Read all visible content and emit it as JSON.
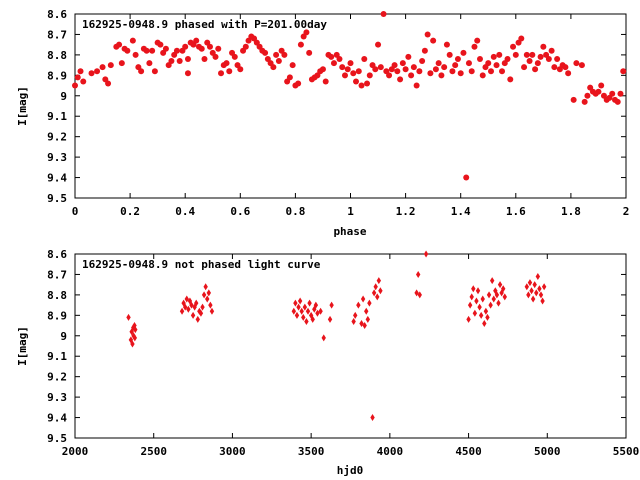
{
  "colors": {
    "points": "#e8141c",
    "axes": "#000000",
    "background": "#ffffff"
  },
  "chart_data": [
    {
      "type": "scatter",
      "title": "162925-0948.9 phased with P=201.00day",
      "xlabel": "phase",
      "ylabel": "I[mag]",
      "xlim": [
        0,
        2
      ],
      "ylim": [
        8.6,
        9.5
      ],
      "y_inverted": true,
      "x_ticks": [
        "0",
        "0.2",
        "0.4",
        "0.6",
        "0.8",
        "1",
        "1.2",
        "1.4",
        "1.6",
        "1.8",
        "2"
      ],
      "y_ticks": [
        "8.6",
        "8.7",
        "8.8",
        "8.9",
        "9",
        "9.1",
        "9.2",
        "9.3",
        "9.4",
        "9.5"
      ],
      "grid": false,
      "legend": "none",
      "marker": "filled-circle",
      "points": [
        [
          0.0,
          8.95
        ],
        [
          0.01,
          8.91
        ],
        [
          0.02,
          8.88
        ],
        [
          0.03,
          8.93
        ],
        [
          0.06,
          8.89
        ],
        [
          0.08,
          8.88
        ],
        [
          0.1,
          8.86
        ],
        [
          0.11,
          8.92
        ],
        [
          0.12,
          8.94
        ],
        [
          0.13,
          8.85
        ],
        [
          0.15,
          8.76
        ],
        [
          0.16,
          8.75
        ],
        [
          0.17,
          8.84
        ],
        [
          0.18,
          8.77
        ],
        [
          0.19,
          8.78
        ],
        [
          0.21,
          8.73
        ],
        [
          0.22,
          8.8
        ],
        [
          0.23,
          8.86
        ],
        [
          0.24,
          8.88
        ],
        [
          0.25,
          8.77
        ],
        [
          0.26,
          8.78
        ],
        [
          0.27,
          8.84
        ],
        [
          0.28,
          8.78
        ],
        [
          0.29,
          8.88
        ],
        [
          0.3,
          8.74
        ],
        [
          0.31,
          8.75
        ],
        [
          0.32,
          8.79
        ],
        [
          0.33,
          8.77
        ],
        [
          0.34,
          8.85
        ],
        [
          0.35,
          8.83
        ],
        [
          0.36,
          8.8
        ],
        [
          0.37,
          8.78
        ],
        [
          0.38,
          8.83
        ],
        [
          0.39,
          8.78
        ],
        [
          0.4,
          8.76
        ],
        [
          0.41,
          8.89
        ],
        [
          0.41,
          8.82
        ],
        [
          0.42,
          8.74
        ],
        [
          0.43,
          8.75
        ],
        [
          0.44,
          8.73
        ],
        [
          0.45,
          8.76
        ],
        [
          0.46,
          8.77
        ],
        [
          0.47,
          8.82
        ],
        [
          0.48,
          8.74
        ],
        [
          0.49,
          8.76
        ],
        [
          0.5,
          8.79
        ],
        [
          0.51,
          8.81
        ],
        [
          0.52,
          8.77
        ],
        [
          0.53,
          8.89
        ],
        [
          0.54,
          8.85
        ],
        [
          0.55,
          8.84
        ],
        [
          0.56,
          8.88
        ],
        [
          0.57,
          8.79
        ],
        [
          0.58,
          8.81
        ],
        [
          0.59,
          8.85
        ],
        [
          0.6,
          8.87
        ],
        [
          0.61,
          8.78
        ],
        [
          0.62,
          8.76
        ],
        [
          0.63,
          8.73
        ],
        [
          0.64,
          8.71
        ],
        [
          0.65,
          8.72
        ],
        [
          0.66,
          8.74
        ],
        [
          0.67,
          8.76
        ],
        [
          0.68,
          8.78
        ],
        [
          0.69,
          8.79
        ],
        [
          0.7,
          8.82
        ],
        [
          0.71,
          8.84
        ],
        [
          0.72,
          8.86
        ],
        [
          0.73,
          8.8
        ],
        [
          0.74,
          8.83
        ],
        [
          0.75,
          8.78
        ],
        [
          0.76,
          8.8
        ],
        [
          0.77,
          8.93
        ],
        [
          0.78,
          8.91
        ],
        [
          0.79,
          8.85
        ],
        [
          0.8,
          8.95
        ],
        [
          0.81,
          8.94
        ],
        [
          0.82,
          8.75
        ],
        [
          0.83,
          8.71
        ],
        [
          0.84,
          8.69
        ],
        [
          0.85,
          8.79
        ],
        [
          0.86,
          8.92
        ],
        [
          0.87,
          8.91
        ],
        [
          0.88,
          8.9
        ],
        [
          0.89,
          8.88
        ],
        [
          0.9,
          8.87
        ],
        [
          0.91,
          8.93
        ],
        [
          0.92,
          8.8
        ],
        [
          0.93,
          8.81
        ],
        [
          0.94,
          8.84
        ],
        [
          0.95,
          8.8
        ],
        [
          0.96,
          8.82
        ],
        [
          0.97,
          8.86
        ],
        [
          0.98,
          8.9
        ],
        [
          0.99,
          8.87
        ],
        [
          1.0,
          8.84
        ],
        [
          1.01,
          8.89
        ],
        [
          1.02,
          8.93
        ],
        [
          1.03,
          8.88
        ],
        [
          1.04,
          8.95
        ],
        [
          1.05,
          8.82
        ],
        [
          1.06,
          8.94
        ],
        [
          1.07,
          8.9
        ],
        [
          1.08,
          8.85
        ],
        [
          1.09,
          8.87
        ],
        [
          1.1,
          8.75
        ],
        [
          1.11,
          8.86
        ],
        [
          1.12,
          8.6
        ],
        [
          1.13,
          8.88
        ],
        [
          1.14,
          8.9
        ],
        [
          1.15,
          8.87
        ],
        [
          1.16,
          8.85
        ],
        [
          1.17,
          8.88
        ],
        [
          1.18,
          8.92
        ],
        [
          1.19,
          8.84
        ],
        [
          1.2,
          8.87
        ],
        [
          1.21,
          8.81
        ],
        [
          1.22,
          8.9
        ],
        [
          1.23,
          8.86
        ],
        [
          1.24,
          8.95
        ],
        [
          1.25,
          8.88
        ],
        [
          1.26,
          8.83
        ],
        [
          1.27,
          8.78
        ],
        [
          1.28,
          8.7
        ],
        [
          1.29,
          8.89
        ],
        [
          1.3,
          8.73
        ],
        [
          1.31,
          8.87
        ],
        [
          1.32,
          8.84
        ],
        [
          1.33,
          8.9
        ],
        [
          1.34,
          8.86
        ],
        [
          1.35,
          8.75
        ],
        [
          1.36,
          8.8
        ],
        [
          1.37,
          8.88
        ],
        [
          1.38,
          8.85
        ],
        [
          1.39,
          8.82
        ],
        [
          1.4,
          8.89
        ],
        [
          1.41,
          8.79
        ],
        [
          1.42,
          9.4
        ],
        [
          1.43,
          8.84
        ],
        [
          1.44,
          8.88
        ],
        [
          1.45,
          8.76
        ],
        [
          1.46,
          8.73
        ],
        [
          1.47,
          8.82
        ],
        [
          1.48,
          8.9
        ],
        [
          1.49,
          8.86
        ],
        [
          1.5,
          8.84
        ],
        [
          1.51,
          8.88
        ],
        [
          1.52,
          8.81
        ],
        [
          1.53,
          8.85
        ],
        [
          1.54,
          8.8
        ],
        [
          1.55,
          8.88
        ],
        [
          1.56,
          8.84
        ],
        [
          1.57,
          8.82
        ],
        [
          1.58,
          8.92
        ],
        [
          1.59,
          8.76
        ],
        [
          1.6,
          8.8
        ],
        [
          1.61,
          8.74
        ],
        [
          1.62,
          8.72
        ],
        [
          1.63,
          8.86
        ],
        [
          1.64,
          8.8
        ],
        [
          1.65,
          8.83
        ],
        [
          1.66,
          8.8
        ],
        [
          1.67,
          8.87
        ],
        [
          1.68,
          8.84
        ],
        [
          1.69,
          8.81
        ],
        [
          1.7,
          8.76
        ],
        [
          1.71,
          8.8
        ],
        [
          1.72,
          8.82
        ],
        [
          1.73,
          8.78
        ],
        [
          1.74,
          8.86
        ],
        [
          1.75,
          8.82
        ],
        [
          1.76,
          8.87
        ],
        [
          1.77,
          8.85
        ],
        [
          1.78,
          8.86
        ],
        [
          1.79,
          8.89
        ],
        [
          1.81,
          9.02
        ],
        [
          1.82,
          8.84
        ],
        [
          1.84,
          8.85
        ],
        [
          1.85,
          9.03
        ],
        [
          1.86,
          9.0
        ],
        [
          1.87,
          8.96
        ],
        [
          1.88,
          8.98
        ],
        [
          1.89,
          8.99
        ],
        [
          1.9,
          8.98
        ],
        [
          1.91,
          8.95
        ],
        [
          1.92,
          9.0
        ],
        [
          1.93,
          9.02
        ],
        [
          1.94,
          9.01
        ],
        [
          1.95,
          8.99
        ],
        [
          1.96,
          9.02
        ],
        [
          1.97,
          9.03
        ],
        [
          1.98,
          8.99
        ],
        [
          1.99,
          8.88
        ]
      ]
    },
    {
      "type": "scatter",
      "title": "162925-0948.9 not phased light curve",
      "xlabel": "hjd0",
      "ylabel": "I[mag]",
      "xlim": [
        2000,
        5500
      ],
      "ylim": [
        8.6,
        9.5
      ],
      "y_inverted": true,
      "x_ticks": [
        "2000",
        "2500",
        "3000",
        "3500",
        "4000",
        "4500",
        "5000",
        "5500"
      ],
      "y_ticks": [
        "8.6",
        "8.7",
        "8.8",
        "8.9",
        "9",
        "9.1",
        "9.2",
        "9.3",
        "9.4",
        "9.5"
      ],
      "grid": false,
      "legend": "none",
      "marker": "diamond",
      "points": [
        [
          2340,
          8.91
        ],
        [
          2355,
          9.02
        ],
        [
          2360,
          8.98
        ],
        [
          2365,
          9.04
        ],
        [
          2370,
          8.96
        ],
        [
          2372,
          9.0
        ],
        [
          2378,
          8.95
        ],
        [
          2380,
          9.01
        ],
        [
          2383,
          8.97
        ],
        [
          2680,
          8.88
        ],
        [
          2690,
          8.84
        ],
        [
          2700,
          8.86
        ],
        [
          2710,
          8.82
        ],
        [
          2720,
          8.87
        ],
        [
          2730,
          8.83
        ],
        [
          2740,
          8.85
        ],
        [
          2750,
          8.9
        ],
        [
          2760,
          8.86
        ],
        [
          2770,
          8.84
        ],
        [
          2780,
          8.92
        ],
        [
          2790,
          8.88
        ],
        [
          2800,
          8.89
        ],
        [
          2810,
          8.86
        ],
        [
          2820,
          8.8
        ],
        [
          2830,
          8.76
        ],
        [
          2840,
          8.82
        ],
        [
          2850,
          8.79
        ],
        [
          2860,
          8.85
        ],
        [
          2870,
          8.88
        ],
        [
          3390,
          8.88
        ],
        [
          3400,
          8.84
        ],
        [
          3410,
          8.9
        ],
        [
          3420,
          8.86
        ],
        [
          3430,
          8.83
        ],
        [
          3440,
          8.88
        ],
        [
          3450,
          8.91
        ],
        [
          3460,
          8.86
        ],
        [
          3470,
          8.93
        ],
        [
          3480,
          8.88
        ],
        [
          3490,
          8.84
        ],
        [
          3500,
          8.9
        ],
        [
          3510,
          8.92
        ],
        [
          3520,
          8.87
        ],
        [
          3530,
          8.85
        ],
        [
          3540,
          8.89
        ],
        [
          3560,
          8.88
        ],
        [
          3580,
          9.01
        ],
        [
          3620,
          8.92
        ],
        [
          3630,
          8.85
        ],
        [
          3770,
          8.93
        ],
        [
          3780,
          8.9
        ],
        [
          3800,
          8.85
        ],
        [
          3820,
          8.94
        ],
        [
          3830,
          8.82
        ],
        [
          3840,
          8.95
        ],
        [
          3850,
          8.88
        ],
        [
          3860,
          8.92
        ],
        [
          3870,
          8.84
        ],
        [
          3890,
          9.4
        ],
        [
          3900,
          8.79
        ],
        [
          3910,
          8.76
        ],
        [
          3920,
          8.81
        ],
        [
          3930,
          8.73
        ],
        [
          3940,
          8.78
        ],
        [
          4170,
          8.79
        ],
        [
          4180,
          8.7
        ],
        [
          4190,
          8.8
        ],
        [
          4230,
          8.6
        ],
        [
          4500,
          8.92
        ],
        [
          4510,
          8.85
        ],
        [
          4520,
          8.81
        ],
        [
          4530,
          8.77
        ],
        [
          4540,
          8.89
        ],
        [
          4550,
          8.83
        ],
        [
          4560,
          8.78
        ],
        [
          4570,
          8.86
        ],
        [
          4580,
          8.9
        ],
        [
          4590,
          8.82
        ],
        [
          4600,
          8.94
        ],
        [
          4610,
          8.88
        ],
        [
          4620,
          8.91
        ],
        [
          4630,
          8.8
        ],
        [
          4640,
          8.85
        ],
        [
          4650,
          8.73
        ],
        [
          4660,
          8.82
        ],
        [
          4670,
          8.78
        ],
        [
          4680,
          8.8
        ],
        [
          4690,
          8.84
        ],
        [
          4700,
          8.75
        ],
        [
          4710,
          8.79
        ],
        [
          4720,
          8.77
        ],
        [
          4730,
          8.81
        ],
        [
          4870,
          8.76
        ],
        [
          4880,
          8.8
        ],
        [
          4890,
          8.74
        ],
        [
          4900,
          8.78
        ],
        [
          4910,
          8.82
        ],
        [
          4920,
          8.75
        ],
        [
          4930,
          8.79
        ],
        [
          4940,
          8.71
        ],
        [
          4950,
          8.77
        ],
        [
          4960,
          8.8
        ],
        [
          4970,
          8.83
        ],
        [
          4980,
          8.76
        ]
      ]
    }
  ]
}
